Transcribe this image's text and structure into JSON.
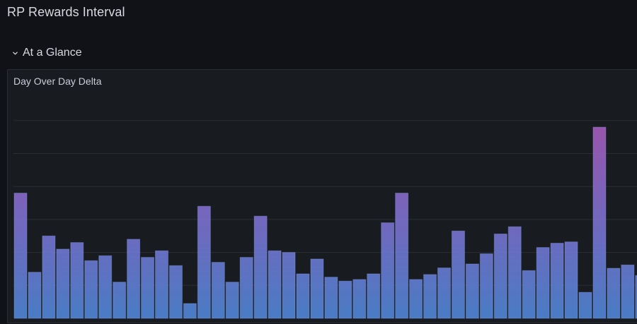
{
  "dashboard": {
    "title": "RP Rewards Interval"
  },
  "row": {
    "title": "At a Glance",
    "collapsed": false,
    "icon": "chevron-down-icon"
  },
  "panel": {
    "title": "Day Over Day Delta"
  },
  "colors": {
    "background": "#111217",
    "panel_background": "#181b1f",
    "bar_blue": "#5b7fd6",
    "bar_purple": "#9b5fbf",
    "grid": "#2b2e34"
  },
  "chart_data": {
    "type": "bar",
    "title": "Day Over Day Delta",
    "grid": true,
    "ylim": [
      0,
      68
    ],
    "values": [
      38,
      14,
      25,
      21,
      23,
      17.5,
      19,
      11,
      24,
      18.5,
      20.5,
      16,
      4.5,
      34,
      17,
      11,
      18.5,
      31,
      20.5,
      20,
      13.5,
      18,
      12.5,
      11.3,
      11.8,
      13.5,
      29,
      38,
      11.8,
      13.3,
      15.3,
      26.5,
      16.5,
      19.6,
      25.6,
      27.8,
      14.5,
      21.5,
      22.8,
      23.2,
      7.9,
      58,
      15.2,
      16.2,
      13
    ]
  }
}
